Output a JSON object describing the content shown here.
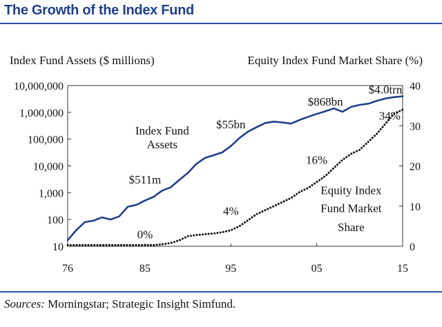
{
  "title": "The Growth of the Index Fund",
  "sources_label": "Sources:",
  "sources_text": " Morningstar; Strategic Insight Simfund.",
  "chart_data": {
    "type": "line",
    "title": "The Growth of the Index Fund",
    "x": [
      1976,
      1977,
      1978,
      1979,
      1980,
      1981,
      1982,
      1983,
      1984,
      1985,
      1986,
      1987,
      1988,
      1989,
      1990,
      1991,
      1992,
      1993,
      1994,
      1995,
      1996,
      1997,
      1998,
      1999,
      2000,
      2001,
      2002,
      2003,
      2004,
      2005,
      2006,
      2007,
      2008,
      2009,
      2010,
      2011,
      2012,
      2013,
      2014,
      2015
    ],
    "xticks": [
      1976,
      1985,
      1995,
      2005,
      2015
    ],
    "xtick_labels": [
      "76",
      "85",
      "95",
      "05",
      "15"
    ],
    "left_axis": {
      "label": "Index Fund Assets ($ millions)",
      "scale": "log",
      "ylim": [
        10,
        10000000
      ],
      "ticks": [
        10,
        100,
        1000,
        10000,
        100000,
        1000000,
        10000000
      ],
      "tick_labels": [
        "10",
        "100",
        "1,000",
        "10,000",
        "100,000",
        "1,000,000",
        "10,000,000"
      ]
    },
    "right_axis": {
      "label": "Equity Index Fund Market Share (%)",
      "scale": "linear",
      "ylim": [
        0,
        40
      ],
      "ticks": [
        0,
        10,
        20,
        30,
        40
      ],
      "tick_labels": [
        "0",
        "10",
        "20",
        "30",
        "40"
      ]
    },
    "series": [
      {
        "name": "Index Fund Assets",
        "axis": "left",
        "style": "solid",
        "color": "#1f3f8a",
        "values": [
          17,
          40,
          80,
          90,
          120,
          100,
          130,
          300,
          350,
          511,
          700,
          1200,
          1600,
          3000,
          5500,
          12000,
          20000,
          25000,
          32000,
          55000,
          110000,
          190000,
          280000,
          400000,
          450000,
          420000,
          380000,
          520000,
          680000,
          868000,
          1100000,
          1400000,
          1050000,
          1600000,
          1900000,
          2100000,
          2700000,
          3300000,
          3700000,
          4000000
        ]
      },
      {
        "name": "Equity Index Fund Market Share",
        "axis": "right",
        "style": "dotted",
        "color": "#111111",
        "values": [
          0.3,
          0.3,
          0.3,
          0.3,
          0.3,
          0.3,
          0.3,
          0.3,
          0.3,
          0.3,
          0.3,
          0.5,
          0.8,
          1.5,
          2.5,
          2.8,
          3.0,
          3.2,
          3.5,
          4.0,
          5.0,
          6.5,
          8.0,
          9.0,
          10.0,
          11.0,
          12.0,
          13.5,
          14.5,
          16.0,
          17.5,
          19.5,
          21.5,
          23.0,
          24.0,
          26.0,
          28.0,
          30.5,
          33.0,
          34.0
        ]
      }
    ],
    "annotations": [
      {
        "text": "Index Fund",
        "x": 1987,
        "y_left": 150000,
        "axis": "left"
      },
      {
        "text": "Assets",
        "x": 1987,
        "y_left": 45000,
        "axis": "left"
      },
      {
        "text": "$511m",
        "x": 1985,
        "y_left": 2200,
        "axis": "left"
      },
      {
        "text": "$55bn",
        "x": 1995,
        "y_left": 250000,
        "axis": "left"
      },
      {
        "text": "$868bn",
        "x": 2006,
        "y_left": 1800000,
        "axis": "left"
      },
      {
        "text": "$4.0trn",
        "x": 2013,
        "y_left": 5000000,
        "axis": "left"
      },
      {
        "text": "0%",
        "x": 1985,
        "y_right": 2.0,
        "axis": "right"
      },
      {
        "text": "4%",
        "x": 1995,
        "y_right": 7.8,
        "axis": "right"
      },
      {
        "text": "16%",
        "x": 2005,
        "y_right": 20.5,
        "axis": "right"
      },
      {
        "text": "34%",
        "x": 2013.5,
        "y_right": 31.5,
        "axis": "right"
      },
      {
        "text": "Equity Index",
        "x": 2009,
        "y_right": 13.0,
        "axis": "right"
      },
      {
        "text": "Fund Market",
        "x": 2009,
        "y_right": 8.5,
        "axis": "right"
      },
      {
        "text": "Share",
        "x": 2009,
        "y_right": 3.8,
        "axis": "right"
      }
    ]
  }
}
